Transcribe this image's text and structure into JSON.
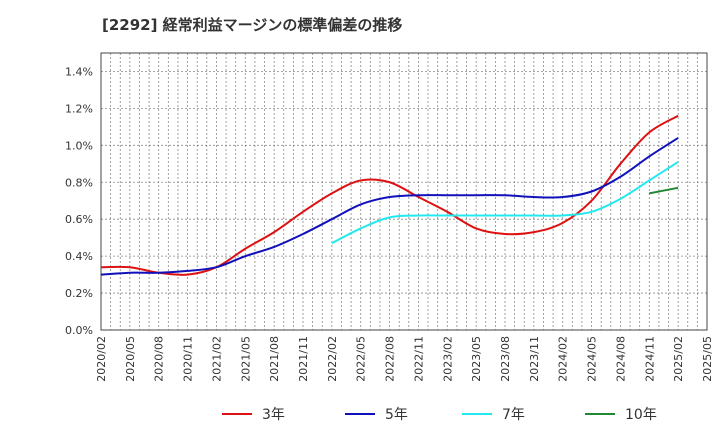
{
  "chart_data": {
    "type": "line",
    "title": "[2292]  経常利益マージンの標準偏差の推移",
    "xlabel": "",
    "ylabel": "",
    "x": [
      "2020/02",
      "2020/05",
      "2020/08",
      "2020/11",
      "2021/02",
      "2021/05",
      "2021/08",
      "2021/11",
      "2022/02",
      "2022/05",
      "2022/08",
      "2022/11",
      "2023/02",
      "2023/05",
      "2023/08",
      "2023/11",
      "2024/02",
      "2024/05",
      "2024/08",
      "2024/11",
      "2025/02",
      "2025/05"
    ],
    "yticks": [
      "0.0%",
      "0.2%",
      "0.4%",
      "0.6%",
      "0.8%",
      "1.0%",
      "1.2%",
      "1.4%"
    ],
    "ylim": [
      0,
      1.5
    ],
    "grid": true,
    "legend_position": "bottom",
    "series": [
      {
        "name": "3年",
        "color": "#dd1111",
        "values": [
          0.34,
          0.34,
          0.31,
          0.3,
          0.34,
          0.44,
          0.53,
          0.64,
          0.74,
          0.81,
          0.8,
          0.72,
          0.64,
          0.55,
          0.52,
          0.53,
          0.58,
          0.7,
          0.9,
          1.07,
          1.16,
          null
        ]
      },
      {
        "name": "5年",
        "color": "#1111bb",
        "values": [
          0.3,
          0.31,
          0.31,
          0.32,
          0.34,
          0.4,
          0.45,
          0.52,
          0.6,
          0.68,
          0.72,
          0.73,
          0.73,
          0.73,
          0.73,
          0.72,
          0.72,
          0.75,
          0.83,
          0.94,
          1.04,
          null
        ]
      },
      {
        "name": "7年",
        "color": "#22e8f0",
        "values": [
          null,
          null,
          null,
          null,
          null,
          null,
          null,
          null,
          0.47,
          0.55,
          0.61,
          0.62,
          0.62,
          0.62,
          0.62,
          0.62,
          0.62,
          0.64,
          0.71,
          0.81,
          0.91,
          null
        ]
      },
      {
        "name": "10年",
        "color": "#228833",
        "values": [
          null,
          null,
          null,
          null,
          null,
          null,
          null,
          null,
          null,
          null,
          null,
          null,
          null,
          null,
          null,
          null,
          null,
          null,
          null,
          0.74,
          0.77,
          null
        ]
      }
    ]
  }
}
